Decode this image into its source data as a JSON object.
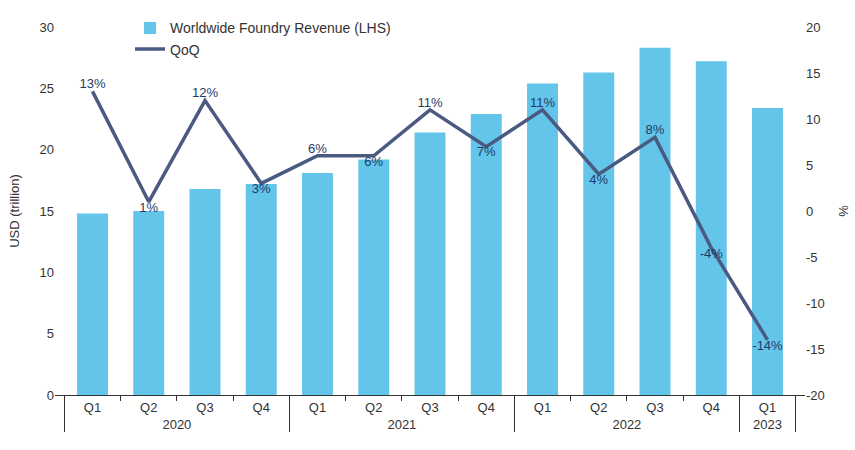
{
  "chart_data": {
    "type": "bar",
    "categories": [
      "Q1",
      "Q2",
      "Q3",
      "Q4",
      "Q1",
      "Q2",
      "Q3",
      "Q4",
      "Q1",
      "Q2",
      "Q3",
      "Q4",
      "Q1"
    ],
    "groups": [
      "2020",
      "2020",
      "2020",
      "2020",
      "2021",
      "2021",
      "2021",
      "2021",
      "2022",
      "2022",
      "2022",
      "2022",
      "2023"
    ],
    "ylabel": "USD (trillion)",
    "y2label": "%",
    "ylim": [
      0,
      30
    ],
    "yticks": [
      0,
      5,
      10,
      15,
      20,
      25,
      30
    ],
    "y2lim": [
      -20,
      20
    ],
    "y2ticks": [
      -20,
      -15,
      -10,
      -5,
      0,
      5,
      10,
      15,
      20
    ],
    "grid": false,
    "legend": "top left",
    "series": [
      {
        "name": "Worldwide Foundry Revenue (LHS)",
        "type": "bar",
        "color": "#63c5ea",
        "values": [
          14.8,
          15.0,
          16.8,
          17.2,
          18.1,
          19.2,
          21.4,
          22.9,
          25.4,
          26.3,
          28.3,
          27.2,
          23.4
        ]
      },
      {
        "name": "QoQ",
        "type": "line",
        "axis": "y2",
        "color": "#4a5a80",
        "data_labels": true,
        "values": [
          13,
          1,
          12,
          3,
          6,
          6,
          11,
          7,
          11,
          4,
          8,
          -4,
          -14
        ],
        "value_labels": [
          "13%",
          "1%",
          "12%",
          "3%",
          "6%",
          "6%",
          "11%",
          "7%",
          "11%",
          "4%",
          "8%",
          "-4%",
          "-14%"
        ]
      }
    ]
  }
}
